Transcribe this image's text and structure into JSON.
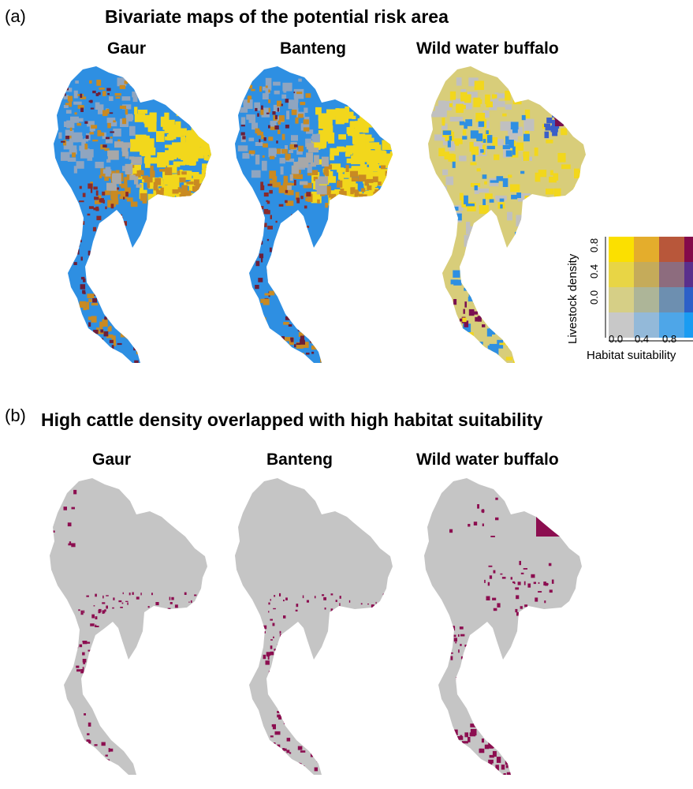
{
  "panel_a": {
    "letter": "(a)",
    "title": "Bivariate maps of the potential risk area",
    "maps": [
      "Gaur",
      "Banteng",
      "Wild water buffalo"
    ]
  },
  "panel_b": {
    "letter": "(b)",
    "title": "High cattle density overlapped with high habitat suitability",
    "maps": [
      "Gaur",
      "Banteng",
      "Wild water buffalo"
    ]
  },
  "legend": {
    "ylabel": "Livestock density",
    "xlabel": "Habitat suitability",
    "y_ticks": [
      "0.0",
      "0.4",
      "0.8"
    ],
    "x_ticks": [
      "0.0",
      "0.4",
      "0.8"
    ],
    "grid_colors": [
      [
        "#fbe000",
        "#e4ad2c",
        "#b8573a",
        "#840a4a"
      ],
      [
        "#e8d545",
        "#c5ab5a",
        "#8d6c7e",
        "#5a2f8c"
      ],
      [
        "#d6cf86",
        "#adb598",
        "#6d8fb0",
        "#2d60c8"
      ],
      [
        "#c8c8c8",
        "#93b9d9",
        "#4ea6e8",
        "#1a9cf2"
      ]
    ]
  },
  "colors": {
    "land_gray": "#c5c5c5",
    "overlap_purple": "#8c0e50",
    "blue": "#2e8fe2",
    "yellow": "#f2d71c",
    "orange": "#c98a22",
    "khaki": "#d8cd7a"
  }
}
